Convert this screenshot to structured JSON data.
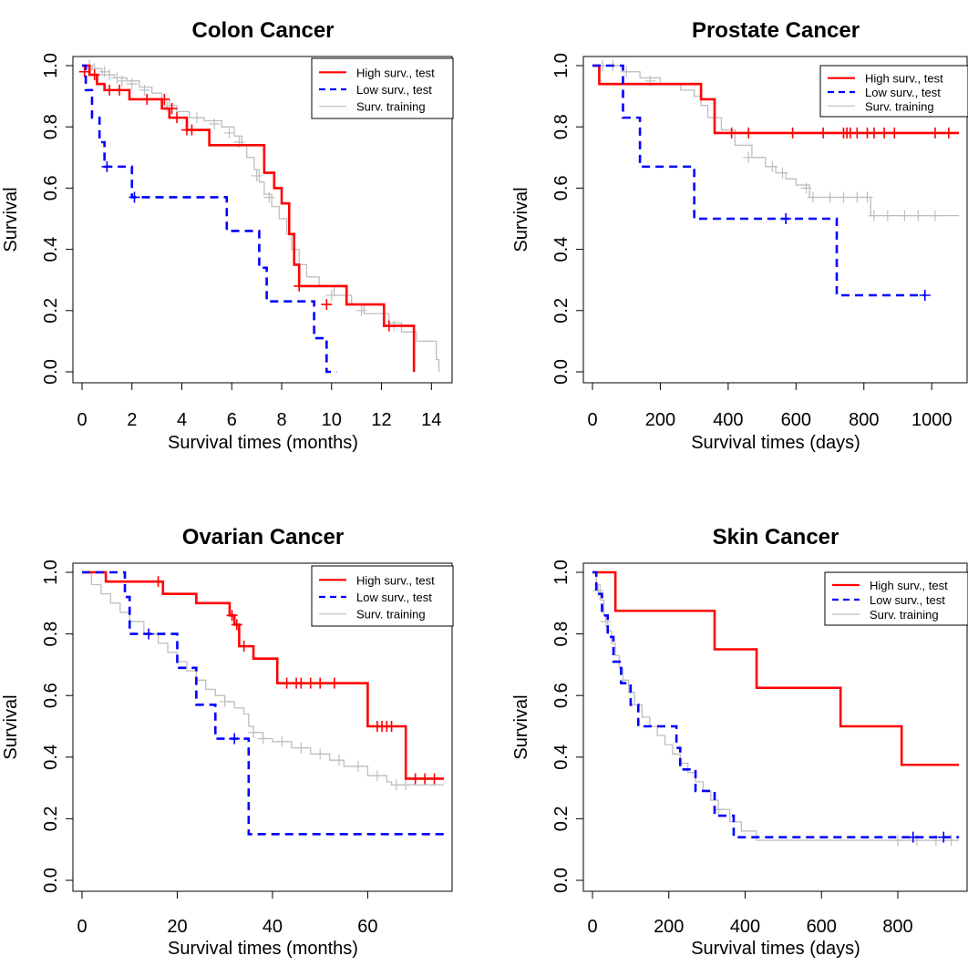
{
  "colors": {
    "high": "#ff0000",
    "low": "#0000ff",
    "train": "#bebebe"
  },
  "chart_data": [
    {
      "type": "line",
      "title": "Colon Cancer",
      "xlabel": "Survival times (months)",
      "ylabel": "Survival",
      "xlim": [
        0,
        14.5
      ],
      "ylim": [
        0,
        1
      ],
      "xticks": [
        "0",
        "2",
        "4",
        "6",
        "8",
        "10",
        "12",
        "14"
      ],
      "yticks": [
        "0.0",
        "0.2",
        "0.4",
        "0.6",
        "0.8",
        "1.0"
      ],
      "legend": [
        "High surv., test",
        "Low surv., test",
        "Surv. training"
      ],
      "legend_position": "top-right",
      "series": [
        {
          "key": "train",
          "name": "Surv. training",
          "style": "step",
          "x": [
            0,
            0.4,
            0.8,
            1.3,
            1.8,
            2.3,
            2.8,
            3.2,
            3.5,
            3.8,
            4.3,
            4.9,
            5.6,
            6.1,
            6.4,
            6.6,
            6.9,
            7.1,
            7.3,
            7.6,
            7.9,
            8.2,
            8.4,
            8.7,
            9.0,
            9.5,
            10.1,
            10.8,
            11.3,
            12.3,
            12.8,
            13.4,
            14.2,
            14.3
          ],
          "y": [
            1.0,
            0.99,
            0.97,
            0.96,
            0.95,
            0.93,
            0.91,
            0.89,
            0.87,
            0.85,
            0.83,
            0.82,
            0.8,
            0.77,
            0.74,
            0.7,
            0.66,
            0.62,
            0.58,
            0.54,
            0.5,
            0.45,
            0.4,
            0.35,
            0.31,
            0.28,
            0.25,
            0.22,
            0.19,
            0.16,
            0.13,
            0.1,
            0.04,
            0.0
          ],
          "censor_x": [
            0.3,
            0.5,
            0.9,
            1.1,
            1.4,
            1.6,
            2.0,
            2.5,
            3.4,
            4.6,
            5.3,
            5.9,
            6.3,
            7.0,
            7.5,
            10.0,
            11.2,
            12.5
          ],
          "censor_y": [
            1.0,
            0.99,
            0.98,
            0.97,
            0.96,
            0.95,
            0.94,
            0.92,
            0.87,
            0.83,
            0.81,
            0.78,
            0.75,
            0.64,
            0.57,
            0.25,
            0.2,
            0.15
          ]
        },
        {
          "key": "high",
          "name": "High surv., test",
          "style": "step",
          "x": [
            0,
            0.3,
            0.6,
            0.9,
            1.9,
            3.2,
            3.5,
            4.2,
            5.1,
            7.3,
            7.7,
            8.0,
            8.3,
            8.5,
            8.7,
            9.1,
            10.6,
            12.1,
            13.3
          ],
          "y": [
            1.0,
            0.97,
            0.94,
            0.92,
            0.89,
            0.86,
            0.83,
            0.79,
            0.74,
            0.65,
            0.6,
            0.55,
            0.45,
            0.35,
            0.28,
            0.28,
            0.22,
            0.15,
            0.0
          ],
          "censor_x": [
            0.1,
            0.5,
            1.1,
            1.5,
            2.6,
            3.3,
            3.6,
            3.8,
            4.2,
            4.4,
            8.7,
            9.8,
            12.3
          ],
          "censor_y": [
            0.98,
            0.97,
            0.92,
            0.92,
            0.89,
            0.89,
            0.86,
            0.83,
            0.79,
            0.79,
            0.28,
            0.22,
            0.15
          ]
        },
        {
          "key": "low",
          "name": "Low surv., test",
          "style": "step",
          "x": [
            0,
            0.15,
            0.4,
            0.7,
            0.9,
            2.0,
            5.8,
            7.1,
            7.4,
            7.7,
            9.3,
            9.8,
            10.2
          ],
          "y": [
            1.0,
            0.92,
            0.83,
            0.75,
            0.67,
            0.57,
            0.46,
            0.34,
            0.23,
            0.23,
            0.11,
            0.0,
            0.0
          ],
          "censor_x": [
            1.0,
            2.1
          ],
          "censor_y": [
            0.67,
            0.57
          ]
        }
      ]
    },
    {
      "type": "line",
      "title": "Prostate Cancer",
      "xlabel": "Survival times (days)",
      "ylabel": "Survival",
      "xlim": [
        0,
        1080
      ],
      "ylim": [
        0,
        1
      ],
      "xticks": [
        "0",
        "200",
        "400",
        "600",
        "800",
        "1000"
      ],
      "yticks": [
        "0.0",
        "0.2",
        "0.4",
        "0.6",
        "0.8",
        "1.0"
      ],
      "legend": [
        "High surv., test",
        "Low surv., test",
        "Surv. training"
      ],
      "legend_position": "top-right",
      "series": [
        {
          "key": "train",
          "name": "Surv. training",
          "style": "step",
          "x": [
            0,
            90,
            140,
            200,
            260,
            300,
            320,
            340,
            380,
            420,
            470,
            510,
            540,
            570,
            600,
            640,
            820,
            1080
          ],
          "y": [
            1.0,
            0.98,
            0.96,
            0.94,
            0.92,
            0.9,
            0.87,
            0.83,
            0.79,
            0.74,
            0.7,
            0.67,
            0.65,
            0.63,
            0.61,
            0.57,
            0.51,
            0.51
          ],
          "censor_x": [
            30,
            60,
            100,
            170,
            460,
            530,
            560,
            630,
            650,
            700,
            740,
            780,
            810,
            830,
            870,
            920,
            960,
            1010
          ],
          "censor_y": [
            1.0,
            1.0,
            0.98,
            0.95,
            0.7,
            0.67,
            0.65,
            0.6,
            0.57,
            0.57,
            0.57,
            0.57,
            0.57,
            0.51,
            0.51,
            0.51,
            0.51,
            0.51
          ]
        },
        {
          "key": "high",
          "name": "High surv., test",
          "style": "step",
          "x": [
            0,
            20,
            320,
            360,
            1080
          ],
          "y": [
            1.0,
            0.94,
            0.89,
            0.78,
            0.78
          ],
          "censor_x": [
            410,
            460,
            590,
            680,
            740,
            750,
            760,
            780,
            810,
            830,
            860,
            890,
            1010,
            1050
          ],
          "censor_y": [
            0.78,
            0.78,
            0.78,
            0.78,
            0.78,
            0.78,
            0.78,
            0.78,
            0.78,
            0.78,
            0.78,
            0.78,
            0.78,
            0.78
          ]
        },
        {
          "key": "low",
          "name": "Low surv., test",
          "style": "step",
          "x": [
            0,
            90,
            140,
            300,
            720,
            980
          ],
          "y": [
            1.0,
            0.83,
            0.67,
            0.5,
            0.25,
            0.25
          ],
          "censor_x": [
            570,
            980
          ],
          "censor_y": [
            0.5,
            0.25
          ]
        }
      ]
    },
    {
      "type": "line",
      "title": "Ovarian Cancer",
      "xlabel": "Survival times (months)",
      "ylabel": "Survival",
      "xlim": [
        0,
        76
      ],
      "ylim": [
        0,
        1
      ],
      "xticks": [
        "0",
        "20",
        "40",
        "60"
      ],
      "yticks": [
        "0.0",
        "0.2",
        "0.4",
        "0.6",
        "0.8",
        "1.0"
      ],
      "legend": [
        "High surv., test",
        "Low surv., test",
        "Surv. training"
      ],
      "legend_position": "top-right",
      "series": [
        {
          "key": "train",
          "name": "Surv. training",
          "style": "step",
          "x": [
            0,
            2,
            4,
            6,
            8,
            10,
            13,
            16,
            18,
            20,
            22,
            24,
            26,
            28,
            30,
            32,
            34,
            35,
            36,
            38,
            40,
            44,
            48,
            52,
            55,
            60,
            64,
            65,
            76
          ],
          "y": [
            1.0,
            0.96,
            0.93,
            0.9,
            0.87,
            0.84,
            0.8,
            0.77,
            0.74,
            0.71,
            0.68,
            0.65,
            0.62,
            0.6,
            0.58,
            0.56,
            0.54,
            0.5,
            0.48,
            0.46,
            0.45,
            0.43,
            0.41,
            0.39,
            0.37,
            0.34,
            0.32,
            0.31,
            0.31
          ],
          "censor_x": [
            14,
            30,
            36,
            38,
            42,
            46,
            50,
            54,
            58,
            62,
            66,
            68
          ],
          "censor_y": [
            0.8,
            0.58,
            0.48,
            0.46,
            0.45,
            0.43,
            0.41,
            0.39,
            0.37,
            0.34,
            0.31,
            0.31
          ]
        },
        {
          "key": "high",
          "name": "High surv., test",
          "style": "step",
          "x": [
            0,
            5,
            17,
            24,
            31,
            32,
            33,
            36,
            41,
            60,
            68,
            76
          ],
          "y": [
            1.0,
            0.97,
            0.93,
            0.9,
            0.86,
            0.83,
            0.76,
            0.72,
            0.64,
            0.5,
            0.33,
            0.33
          ],
          "censor_x": [
            16,
            31.5,
            32.5,
            34,
            43,
            45,
            46,
            48,
            50,
            53,
            62,
            63,
            64,
            65,
            70,
            72,
            74
          ],
          "censor_y": [
            0.97,
            0.86,
            0.83,
            0.76,
            0.64,
            0.64,
            0.64,
            0.64,
            0.64,
            0.64,
            0.5,
            0.5,
            0.5,
            0.5,
            0.33,
            0.33,
            0.33
          ]
        },
        {
          "key": "low",
          "name": "Low surv., test",
          "style": "step",
          "x": [
            0,
            9,
            10,
            20,
            24,
            28,
            35,
            76
          ],
          "y": [
            1.0,
            0.92,
            0.8,
            0.69,
            0.57,
            0.46,
            0.15,
            0.15
          ],
          "censor_x": [
            14,
            32
          ],
          "censor_y": [
            0.8,
            0.46
          ]
        }
      ]
    },
    {
      "type": "line",
      "title": "Skin Cancer",
      "xlabel": "Survival times (days)",
      "ylabel": "Survival",
      "xlim": [
        0,
        960
      ],
      "ylim": [
        0,
        1
      ],
      "xticks": [
        "0",
        "200",
        "400",
        "600",
        "800"
      ],
      "yticks": [
        "0.0",
        "0.2",
        "0.4",
        "0.6",
        "0.8",
        "1.0"
      ],
      "legend": [
        "High surv., test",
        "Low surv., test",
        "Surv. training"
      ],
      "legend_position": "top-right",
      "series": [
        {
          "key": "train",
          "name": "Surv. training",
          "style": "step",
          "x": [
            0,
            10,
            20,
            30,
            40,
            50,
            60,
            70,
            80,
            95,
            110,
            130,
            150,
            170,
            190,
            210,
            230,
            250,
            270,
            290,
            310,
            330,
            360,
            390,
            430,
            960
          ],
          "y": [
            1.0,
            0.96,
            0.91,
            0.86,
            0.81,
            0.77,
            0.73,
            0.69,
            0.65,
            0.61,
            0.57,
            0.53,
            0.5,
            0.47,
            0.44,
            0.41,
            0.38,
            0.35,
            0.32,
            0.29,
            0.26,
            0.23,
            0.19,
            0.16,
            0.13,
            0.13
          ],
          "censor_x": [
            15,
            35,
            330,
            800,
            850,
            900,
            940
          ],
          "censor_y": [
            0.94,
            0.84,
            0.23,
            0.13,
            0.13,
            0.13,
            0.13
          ]
        },
        {
          "key": "high",
          "name": "High surv., test",
          "style": "step",
          "x": [
            0,
            60,
            320,
            430,
            650,
            810,
            960
          ],
          "y": [
            1.0,
            0.875,
            0.75,
            0.625,
            0.5,
            0.375,
            0.375
          ],
          "censor_x": [],
          "censor_y": []
        },
        {
          "key": "low",
          "name": "Low surv., test",
          "style": "step",
          "x": [
            0,
            10,
            25,
            40,
            55,
            75,
            100,
            120,
            220,
            230,
            250,
            270,
            300,
            320,
            370,
            960
          ],
          "y": [
            1.0,
            0.93,
            0.86,
            0.79,
            0.71,
            0.64,
            0.57,
            0.5,
            0.43,
            0.36,
            0.36,
            0.29,
            0.29,
            0.21,
            0.14,
            0.14
          ],
          "censor_x": [
            840,
            920
          ],
          "censor_y": [
            0.14,
            0.14
          ]
        }
      ]
    }
  ]
}
